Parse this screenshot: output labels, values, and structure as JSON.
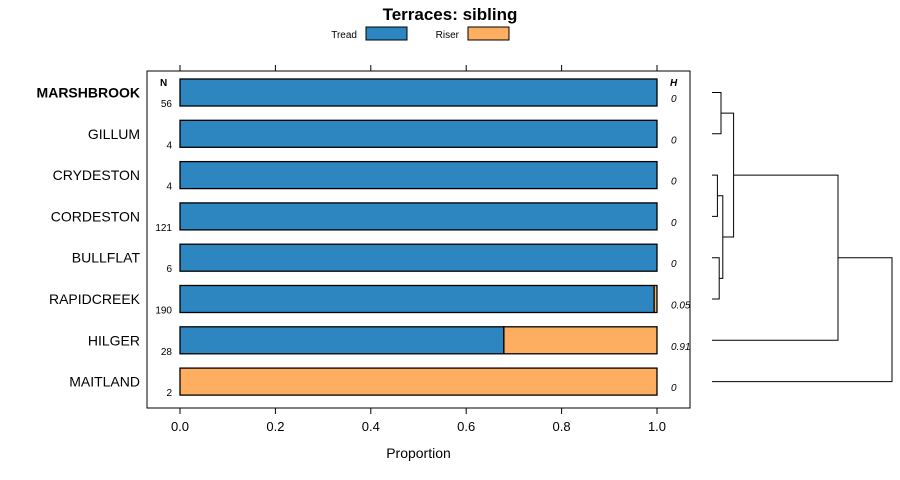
{
  "chart_data": {
    "type": "bar",
    "orientation": "horizontal",
    "stacked": true,
    "title": "Terraces: sibling",
    "xlabel": "Proportion",
    "xlim": [
      -0.07,
      1.07
    ],
    "xticks": [
      0.0,
      0.2,
      0.4,
      0.6,
      0.8,
      1.0
    ],
    "xtick_labels": [
      "0.0",
      "0.2",
      "0.4",
      "0.6",
      "0.8",
      "1.0"
    ],
    "n_header": "N",
    "h_header": "H",
    "legend": [
      {
        "name": "Tread",
        "color": "#2E86C1"
      },
      {
        "name": "Riser",
        "color": "#FDAE61"
      }
    ],
    "categories": [
      "MARSHBROOK",
      "GILLUM",
      "CRYDESTON",
      "CORDESTON",
      "BULLFLAT",
      "RAPIDCREEK",
      "HILGER",
      "MAITLAND"
    ],
    "highlight": "MARSHBROOK",
    "n": [
      "56",
      "4",
      "4",
      "121",
      "6",
      "190",
      "28",
      "2"
    ],
    "h": [
      "0",
      "0",
      "0",
      "0",
      "0",
      "0.05",
      "0.91",
      "0"
    ],
    "series": [
      {
        "name": "Tread",
        "color": "#2E86C1",
        "values": [
          1.0,
          1.0,
          1.0,
          1.0,
          1.0,
          0.994,
          0.679,
          0.0
        ]
      },
      {
        "name": "Riser",
        "color": "#FDAE61",
        "values": [
          0.0,
          0.0,
          0.0,
          0.0,
          0.0,
          0.006,
          0.321,
          1.0
        ]
      }
    ],
    "dendrogram": {
      "merges": [
        {
          "a": 0,
          "b": 1,
          "height": 0.05
        },
        {
          "a": 2,
          "b": 3,
          "height": 0.03
        },
        {
          "a": 4,
          "b": 5,
          "height": 0.04
        },
        {
          "a": -2,
          "b": -3,
          "height": 0.06
        },
        {
          "a": -1,
          "b": -4,
          "height": 0.12
        },
        {
          "a": -5,
          "b": 6,
          "height": 0.7
        },
        {
          "a": -6,
          "b": 7,
          "height": 1.0
        }
      ]
    }
  }
}
